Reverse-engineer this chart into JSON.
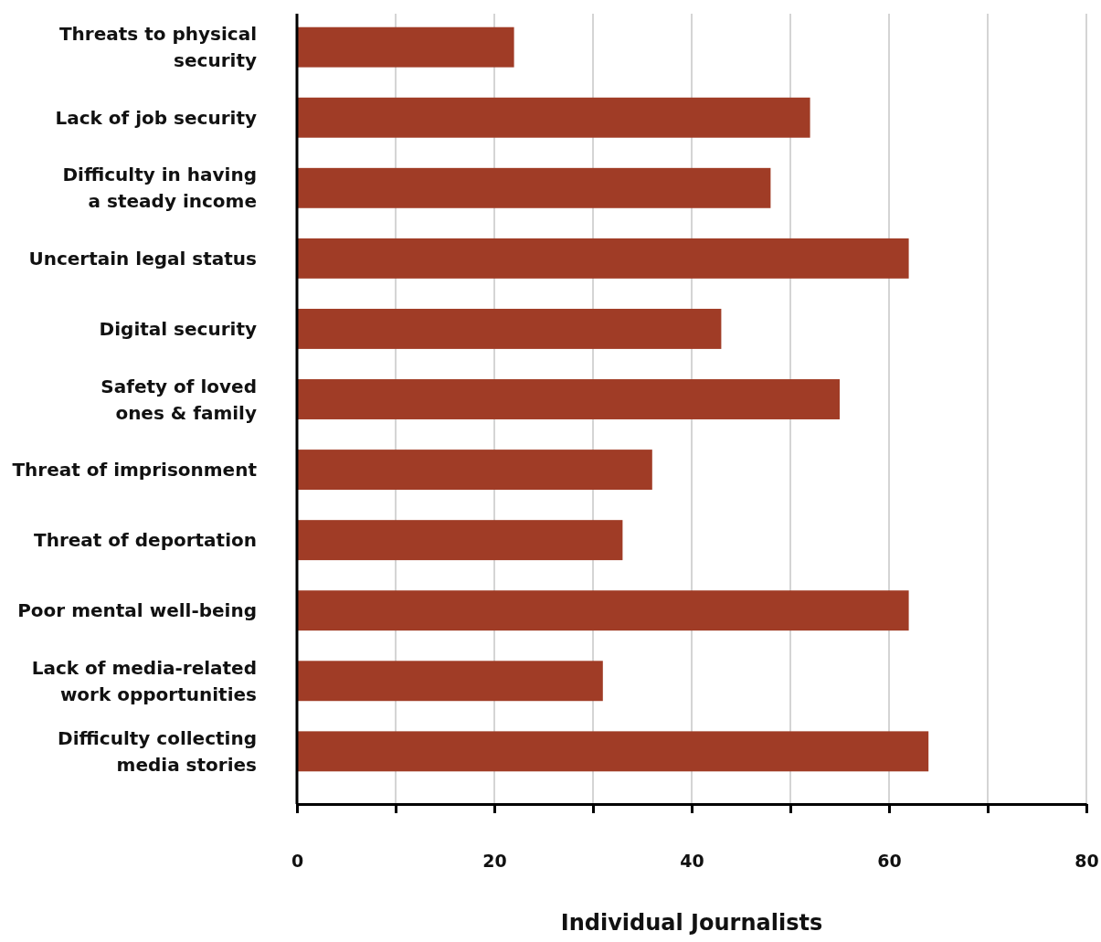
{
  "chart_data": {
    "type": "bar",
    "orientation": "horizontal",
    "xlabel": "Individual Journalists",
    "categories": [
      "Threats to physical\nsecurity",
      "Lack of job security",
      "Difficulty in having\na steady income",
      "Uncertain legal status",
      "Digital security",
      "Safety of loved\nones & family",
      "Threat of imprisonment",
      "Threat of deportation",
      "Poor mental well-being",
      "Lack of media-related\nwork opportunities",
      "Difficulty collecting\nmedia stories"
    ],
    "values": [
      22,
      52,
      48,
      62,
      43,
      55,
      36,
      33,
      62,
      31,
      64
    ],
    "color": "#a03c26",
    "xlim": [
      0,
      80
    ],
    "xticks": [
      0,
      {
        "value": 10,
        "label": null
      },
      20,
      {
        "value": 30,
        "label": null
      },
      40,
      {
        "value": 50,
        "label": null
      },
      60,
      {
        "value": 70,
        "label": null
      },
      80
    ],
    "grid": "x"
  }
}
